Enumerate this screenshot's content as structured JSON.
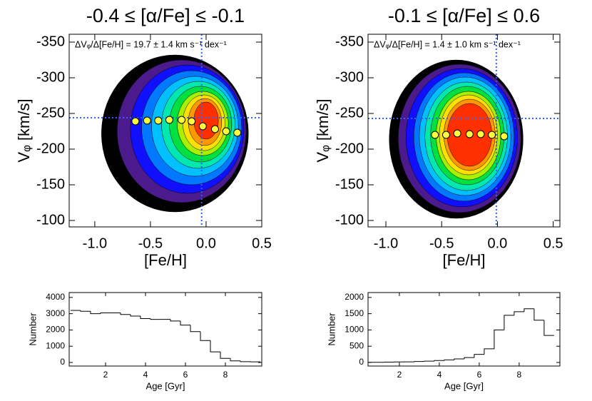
{
  "chart_data": [
    {
      "type": "contour",
      "title": "-0.4 ≤ [α/Fe] ≤ -0.1",
      "annotation": "ΔVᵩ/Δ[Fe/H] = 19.7 ± 1.4 km s⁻¹ dex⁻¹",
      "xlabel": "[Fe/H]",
      "ylabel": "Vᵩ [km/s]",
      "xlim": [
        -1.23,
        0.5
      ],
      "ylim": [
        -91,
        -361
      ],
      "xticks": [
        {
          "value": -1,
          "label": "-1.0"
        },
        -0.5,
        {
          "value": 0,
          "label": "0.0"
        },
        0.5
      ],
      "yticks": [
        -350,
        -300,
        -250,
        -200,
        -150,
        -100
      ],
      "contours": [
        {
          "color": "#000000",
          "x": -0.28,
          "y": -222,
          "rx": 0.66,
          "ry": 110
        },
        {
          "color": "#4b1a8c",
          "x": -0.22,
          "y": -225,
          "rx": 0.58,
          "ry": 100
        },
        {
          "color": "#1010ff",
          "x": -0.17,
          "y": -228,
          "rx": 0.51,
          "ry": 90
        },
        {
          "color": "#0078ff",
          "x": -0.13,
          "y": -230,
          "rx": 0.45,
          "ry": 80
        },
        {
          "color": "#00c0ff",
          "x": -0.1,
          "y": -232,
          "rx": 0.39,
          "ry": 70
        },
        {
          "color": "#00e8b0",
          "x": -0.07,
          "y": -234,
          "rx": 0.33,
          "ry": 61
        },
        {
          "color": "#00e040",
          "x": -0.05,
          "y": -235,
          "rx": 0.28,
          "ry": 53
        },
        {
          "color": "#a8f000",
          "x": -0.03,
          "y": -236,
          "rx": 0.23,
          "ry": 45
        },
        {
          "color": "#ffe000",
          "x": -0.02,
          "y": -237,
          "rx": 0.19,
          "ry": 39
        },
        {
          "color": "#ff9800",
          "x": -0.01,
          "y": -238,
          "rx": 0.15,
          "ry": 33
        },
        {
          "color": "#ff3000",
          "x": 0.0,
          "y": -240,
          "rx": 0.11,
          "ry": 26
        }
      ],
      "series": [
        {
          "color": "#ffff40",
          "x": [
            -0.635,
            -0.53,
            -0.43,
            -0.33,
            -0.22,
            -0.13,
            -0.03,
            0.08,
            0.18,
            0.28
          ],
          "values": [
            -239,
            -240,
            -240,
            -241,
            -241,
            -239,
            -232,
            -228,
            -225,
            -223
          ]
        }
      ],
      "ref_x": -0.04,
      "ref_y": -244,
      "ref_color": "#3060ff"
    },
    {
      "type": "contour",
      "title": "-0.1 ≤ [α/Fe] ≤ 0.6",
      "annotation": "ΔVᵩ/Δ[Fe/H] = 1.4 ± 1.0 km s⁻¹ dex⁻¹",
      "xlabel": "[Fe/H]",
      "ylabel": "Vᵩ [km/s]",
      "xlim": [
        -1.16,
        0.56
      ],
      "ylim": [
        -91,
        -361
      ],
      "xticks": [
        {
          "value": -1,
          "label": "-1.0"
        },
        -0.5,
        {
          "value": 0,
          "label": "0.0"
        },
        0.5
      ],
      "yticks": [
        -350,
        -300,
        -250,
        -200,
        -150,
        -100
      ],
      "contours": [
        {
          "color": "#000000",
          "x": -0.37,
          "y": -214,
          "rx": 0.6,
          "ry": 111
        },
        {
          "color": "#4b1a8c",
          "x": -0.34,
          "y": -215,
          "rx": 0.55,
          "ry": 104
        },
        {
          "color": "#1010ff",
          "x": -0.32,
          "y": -216,
          "rx": 0.5,
          "ry": 97
        },
        {
          "color": "#0078ff",
          "x": -0.3,
          "y": -217,
          "rx": 0.45,
          "ry": 90
        },
        {
          "color": "#00c0ff",
          "x": -0.29,
          "y": -218,
          "rx": 0.41,
          "ry": 83
        },
        {
          "color": "#00e8b0",
          "x": -0.28,
          "y": -218,
          "rx": 0.37,
          "ry": 76
        },
        {
          "color": "#00e040",
          "x": -0.27,
          "y": -219,
          "rx": 0.33,
          "ry": 69
        },
        {
          "color": "#a8f000",
          "x": -0.26,
          "y": -219,
          "rx": 0.29,
          "ry": 62
        },
        {
          "color": "#ffe000",
          "x": -0.26,
          "y": -220,
          "rx": 0.26,
          "ry": 56
        },
        {
          "color": "#ff9800",
          "x": -0.25,
          "y": -220,
          "rx": 0.23,
          "ry": 50
        },
        {
          "color": "#ff3000",
          "x": -0.25,
          "y": -220,
          "rx": 0.2,
          "ry": 44
        }
      ],
      "series": [
        {
          "color": "#ffff40",
          "x": [
            -0.56,
            -0.46,
            -0.36,
            -0.25,
            -0.15,
            -0.05,
            0.06
          ],
          "values": [
            -220,
            -220,
            -222,
            -221,
            -221,
            -220,
            -218
          ]
        }
      ],
      "ref_x": -0.01,
      "ref_y": -243,
      "ref_color": "#3060ff"
    },
    {
      "type": "histogram",
      "xlabel": "Age [Gyr]",
      "ylabel": "Number",
      "color": "#000000",
      "xlim": [
        0.18,
        9.82
      ],
      "ylim": [
        -220,
        4300
      ],
      "xticks": [
        2,
        4,
        6,
        8
      ],
      "yticks": [
        0,
        1000,
        2000,
        3000,
        4000
      ],
      "bins": [
        0.25,
        0.75,
        1.25,
        1.75,
        2.25,
        2.75,
        3.25,
        3.75,
        4.25,
        4.75,
        5.25,
        5.75,
        6.25,
        6.75,
        7.25,
        7.75,
        8.25,
        8.75,
        9.25,
        9.75
      ],
      "values": [
        3200,
        3150,
        3000,
        3050,
        3050,
        2950,
        2850,
        2700,
        2650,
        2650,
        2550,
        2300,
        1900,
        1350,
        650,
        250,
        100,
        50,
        40
      ]
    },
    {
      "type": "histogram",
      "xlabel": "Age [Gyr]",
      "ylabel": "Number",
      "color": "#000000",
      "xlim": [
        0.43,
        10.04
      ],
      "ylim": [
        -110,
        2150
      ],
      "xticks": [
        2,
        4,
        6,
        8
      ],
      "yticks": [
        0,
        500,
        1000,
        1500,
        2000
      ],
      "bins": [
        0.25,
        0.75,
        1.25,
        1.75,
        2.25,
        2.75,
        3.25,
        3.75,
        4.25,
        4.75,
        5.25,
        5.75,
        6.25,
        6.75,
        7.25,
        7.75,
        8.25,
        8.75,
        9.25,
        9.75
      ],
      "values": [
        5,
        5,
        10,
        15,
        20,
        30,
        40,
        60,
        80,
        110,
        150,
        250,
        420,
        1000,
        1450,
        1560,
        1650,
        1300,
        830
      ]
    }
  ]
}
